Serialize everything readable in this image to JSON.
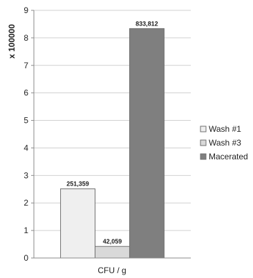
{
  "chart_data": {
    "type": "bar",
    "title": "",
    "xlabel": "CFU / g",
    "ylabel": "x 100000",
    "categories": [
      "CFU / g"
    ],
    "ylim": [
      0,
      9
    ],
    "yticks": [
      "0",
      "1",
      "2",
      "3",
      "4",
      "5",
      "6",
      "7",
      "8",
      "9"
    ],
    "grid": true,
    "legend_position": "right",
    "series": [
      {
        "name": "Wash #1",
        "values": [
          2.51359
        ],
        "label": "251,359",
        "color": "#efefef"
      },
      {
        "name": "Wash #3",
        "values": [
          0.42059
        ],
        "label": "42,059",
        "color": "#d9d9d9"
      },
      {
        "name": "Macerated",
        "values": [
          8.33812
        ],
        "label": "833,812",
        "color": "#7f7f7f"
      }
    ]
  }
}
